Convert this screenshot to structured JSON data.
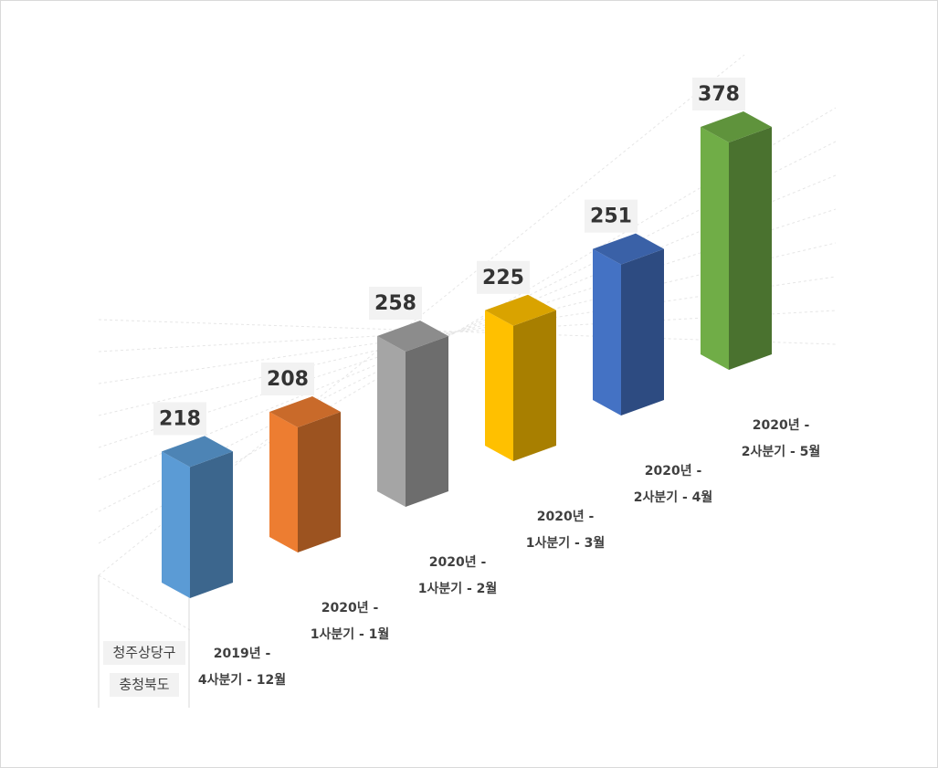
{
  "chart_data": {
    "type": "bar3d",
    "group_labels": [
      "청주상당구",
      "충청북도"
    ],
    "categories": [
      [
        "2019년 -",
        "4사분기 - 12월"
      ],
      [
        "2020년 -",
        "1사분기 - 1월"
      ],
      [
        "2020년 -",
        "1사분기 - 2월"
      ],
      [
        "2020년 -",
        "1사분기 - 3월"
      ],
      [
        "2020년 -",
        "2사분기 - 4월"
      ],
      [
        "2020년 -",
        "2사분기 - 5월"
      ]
    ],
    "values": [
      218,
      208,
      258,
      225,
      251,
      378
    ],
    "colors": [
      "#5b9bd5",
      "#ed7d31",
      "#a5a5a5",
      "#ffc000",
      "#4472c4",
      "#70ad47"
    ]
  }
}
